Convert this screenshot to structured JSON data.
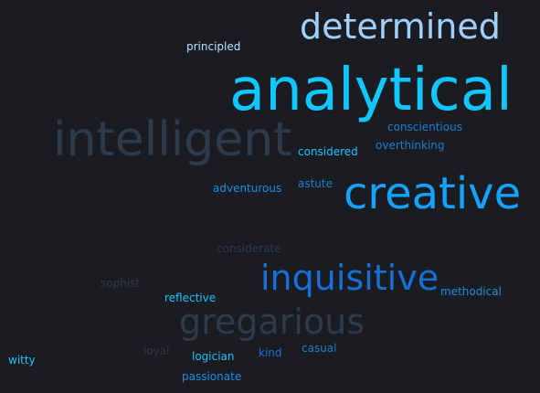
{
  "background": "#1a1c22",
  "words": [
    {
      "text": "determined",
      "color": "#9fd0ff"
    },
    {
      "text": "principled",
      "color": "#b9e0ff"
    },
    {
      "text": "analytical",
      "color": "#12c6ff"
    },
    {
      "text": "conscientious",
      "color": "#1b7fd1"
    },
    {
      "text": "intelligent",
      "color": "#2c3a4b"
    },
    {
      "text": "considered",
      "color": "#19c3ff"
    },
    {
      "text": "overthinking",
      "color": "#1b7fd1"
    },
    {
      "text": "adventurous",
      "color": "#1b8fe0"
    },
    {
      "text": "astute",
      "color": "#1b7fd1"
    },
    {
      "text": "creative",
      "color": "#14a3ff"
    },
    {
      "text": "considerate",
      "color": "#2c3a4b"
    },
    {
      "text": "sophist",
      "color": "#2c3a4b"
    },
    {
      "text": "inquisitive",
      "color": "#1670d6"
    },
    {
      "text": "methodical",
      "color": "#1b8fe0"
    },
    {
      "text": "reflective",
      "color": "#19c3ff"
    },
    {
      "text": "gregarious",
      "color": "#2c3a4b"
    },
    {
      "text": "loyal",
      "color": "#2c3a4b"
    },
    {
      "text": "logician",
      "color": "#19c3ff"
    },
    {
      "text": "kind",
      "color": "#1670d6"
    },
    {
      "text": "casual",
      "color": "#1b7fd1"
    },
    {
      "text": "witty",
      "color": "#19c3ff"
    },
    {
      "text": "passionate",
      "color": "#1b8fe0"
    }
  ]
}
